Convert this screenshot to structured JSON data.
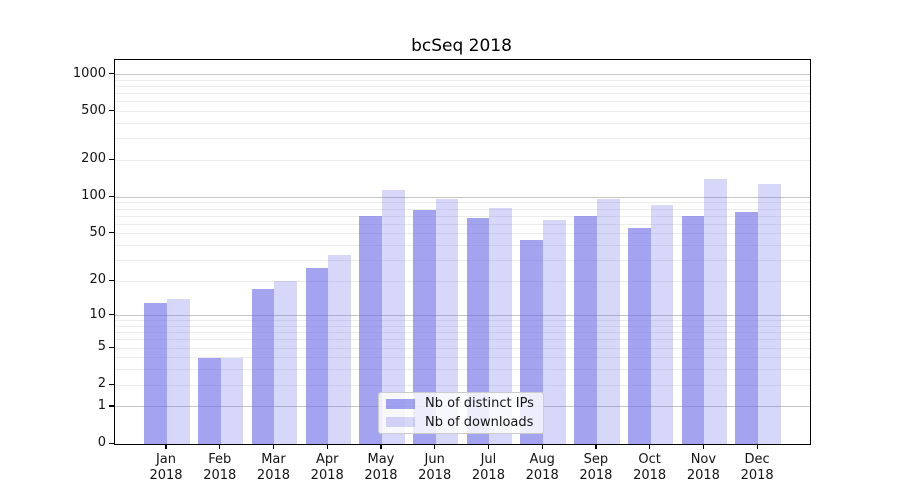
{
  "title": "bcSeq 2018",
  "chart_data": {
    "type": "bar",
    "title": "bcSeq 2018",
    "categories": [
      "Jan 2018",
      "Feb 2018",
      "Mar 2018",
      "Apr 2018",
      "May 2018",
      "Jun 2018",
      "Jul 2018",
      "Aug 2018",
      "Sep 2018",
      "Oct 2018",
      "Nov 2018",
      "Dec 2018"
    ],
    "month_labels": [
      "Jan",
      "Feb",
      "Mar",
      "Apr",
      "May",
      "Jun",
      "Jul",
      "Aug",
      "Sep",
      "Oct",
      "Nov",
      "Dec"
    ],
    "year_label": "2018",
    "series": [
      {
        "name": "Nb of distinct IPs",
        "values": [
          13,
          4,
          17,
          26,
          70,
          78,
          67,
          44,
          70,
          56,
          70,
          75
        ]
      },
      {
        "name": "Nb of downloads",
        "values": [
          14,
          4,
          20,
          33,
          115,
          97,
          81,
          65,
          97,
          87,
          142,
          129
        ]
      }
    ],
    "xlabel": "",
    "ylabel": "",
    "y_scale": "log10(value+1)",
    "y_ticks": [
      0,
      1,
      2,
      5,
      10,
      20,
      50,
      100,
      200,
      500,
      1000
    ],
    "y_major_gridlines": [
      1,
      10,
      100,
      1000
    ],
    "ylim": [
      0,
      1316
    ],
    "grid": "horizontal log minor+major gridlines",
    "legend_position": "inside lower-center",
    "colors": {
      "distinct_ips": "rgba(102,102,230,0.6)",
      "downloads": "rgba(102,102,230,0.26)",
      "major_grid": "#c6c6c6",
      "minor_grid": "#ececec",
      "axis": "#000000"
    }
  },
  "legend": {
    "items": [
      {
        "label": "Nb of distinct IPs"
      },
      {
        "label": "Nb of downloads"
      }
    ]
  }
}
